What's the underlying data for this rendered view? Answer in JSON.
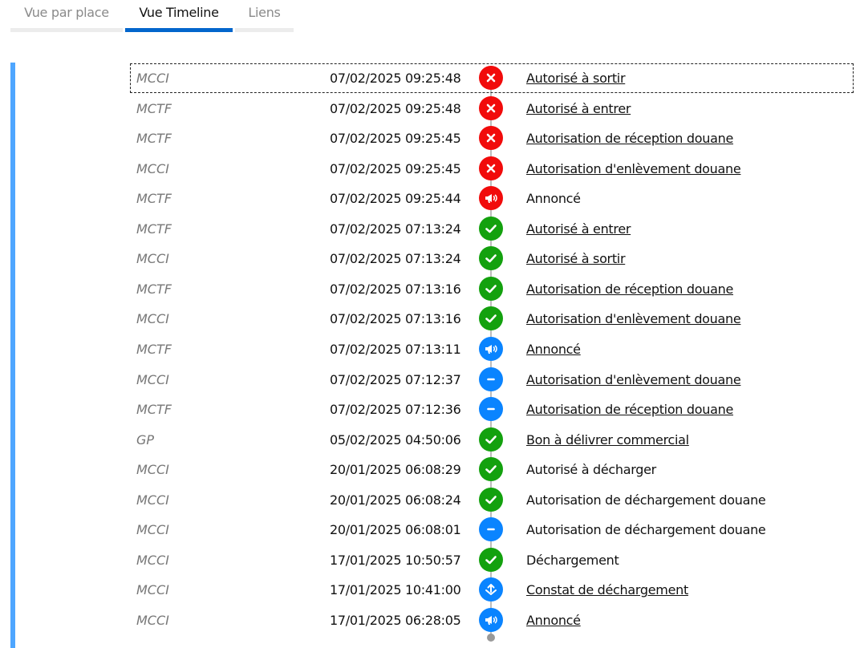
{
  "tabs": [
    {
      "label": "Vue par place",
      "active": false
    },
    {
      "label": "Vue Timeline",
      "active": true
    },
    {
      "label": "Liens",
      "active": false
    }
  ],
  "colors": {
    "error": "#f10b0b",
    "success": "#13a10e",
    "info": "#0a84ff",
    "accent": "#0366cc"
  },
  "events": [
    {
      "source": "MCCI",
      "date": "07/02/2025 09:25:48",
      "status": "error",
      "icon": "close-icon",
      "label": "Autorisé à sortir",
      "link": true
    },
    {
      "source": "MCTF",
      "date": "07/02/2025 09:25:48",
      "status": "error",
      "icon": "close-icon",
      "label": "Autorisé à entrer",
      "link": true
    },
    {
      "source": "MCTF",
      "date": "07/02/2025 09:25:45",
      "status": "error",
      "icon": "close-icon",
      "label": "Autorisation de réception douane",
      "link": true
    },
    {
      "source": "MCCI",
      "date": "07/02/2025 09:25:45",
      "status": "error",
      "icon": "close-icon",
      "label": "Autorisation d'enlèvement douane",
      "link": true
    },
    {
      "source": "MCTF",
      "date": "07/02/2025 09:25:44",
      "status": "error",
      "icon": "megaphone-icon",
      "label": "Annoncé",
      "link": false
    },
    {
      "source": "MCTF",
      "date": "07/02/2025 07:13:24",
      "status": "success",
      "icon": "check-icon",
      "label": "Autorisé à entrer",
      "link": true
    },
    {
      "source": "MCCI",
      "date": "07/02/2025 07:13:24",
      "status": "success",
      "icon": "check-icon",
      "label": "Autorisé à sortir",
      "link": true
    },
    {
      "source": "MCTF",
      "date": "07/02/2025 07:13:16",
      "status": "success",
      "icon": "check-icon",
      "label": "Autorisation de réception douane",
      "link": true
    },
    {
      "source": "MCCI",
      "date": "07/02/2025 07:13:16",
      "status": "success",
      "icon": "check-icon",
      "label": "Autorisation d'enlèvement douane",
      "link": true
    },
    {
      "source": "MCTF",
      "date": "07/02/2025 07:13:11",
      "status": "info",
      "icon": "megaphone-icon",
      "label": "Annoncé",
      "link": true
    },
    {
      "source": "MCCI",
      "date": "07/02/2025 07:12:37",
      "status": "info",
      "icon": "minus-icon",
      "label": "Autorisation d'enlèvement douane",
      "link": true
    },
    {
      "source": "MCTF",
      "date": "07/02/2025 07:12:36",
      "status": "info",
      "icon": "minus-icon",
      "label": "Autorisation de réception douane",
      "link": true
    },
    {
      "source": "GP",
      "date": "05/02/2025 04:50:06",
      "status": "success",
      "icon": "check-icon",
      "label": "Bon à délivrer commercial",
      "link": true
    },
    {
      "source": "MCCI",
      "date": "20/01/2025 06:08:29",
      "status": "success",
      "icon": "check-icon",
      "label": "Autorisé à décharger",
      "link": false
    },
    {
      "source": "MCCI",
      "date": "20/01/2025 06:08:24",
      "status": "success",
      "icon": "check-icon",
      "label": "Autorisation de déchargement douane",
      "link": false
    },
    {
      "source": "MCCI",
      "date": "20/01/2025 06:08:01",
      "status": "info",
      "icon": "minus-icon",
      "label": "Autorisation de déchargement douane",
      "link": false
    },
    {
      "source": "MCCI",
      "date": "17/01/2025 10:50:57",
      "status": "success",
      "icon": "check-icon",
      "label": "Déchargement",
      "link": false
    },
    {
      "source": "MCCI",
      "date": "17/01/2025 10:41:00",
      "status": "info",
      "icon": "unload-icon",
      "label": "Constat de déchargement",
      "link": true
    },
    {
      "source": "MCCI",
      "date": "17/01/2025 06:28:05",
      "status": "info",
      "icon": "megaphone-icon",
      "label": "Annoncé",
      "link": true
    }
  ]
}
